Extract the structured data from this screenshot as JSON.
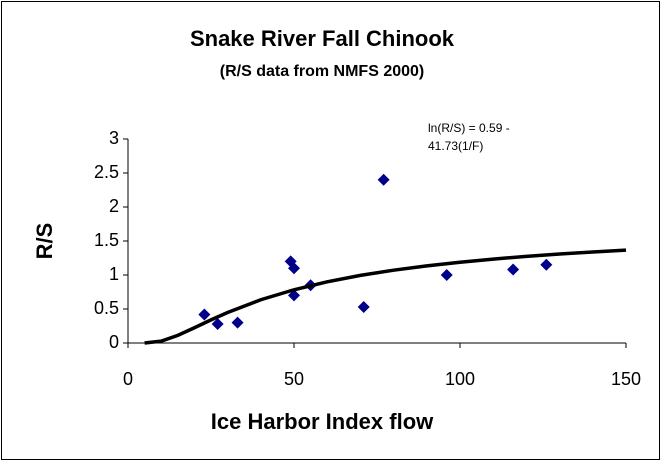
{
  "chart_data": {
    "type": "scatter",
    "title": "Snake River Fall Chinook",
    "subtitle": "(R/S data from NMFS 2000)",
    "x_label": "Ice Harbor Index flow",
    "y_label": "R/S",
    "annotation": [
      "ln(R/S) = 0.59 -",
      "41.73(1/F)"
    ],
    "xlim": [
      0,
      150
    ],
    "xticks": [
      0,
      50,
      100,
      150
    ],
    "ylim": [
      0,
      3
    ],
    "yticks": [
      0,
      0.5,
      1,
      1.5,
      2,
      2.5,
      3
    ],
    "grid": false,
    "series": [
      {
        "style": "marker",
        "color": "#00008b",
        "x": [
          23,
          27,
          33,
          49,
          50,
          50,
          55,
          71,
          77,
          96,
          116,
          126
        ],
        "values": [
          0.42,
          0.28,
          0.3,
          1.2,
          1.1,
          0.7,
          0.85,
          0.53,
          2.4,
          1.0,
          1.08,
          1.15
        ]
      },
      {
        "style": "line",
        "color": "#000000",
        "x": [
          5,
          10,
          15,
          20,
          25,
          30,
          40,
          50,
          60,
          70,
          80,
          90,
          100,
          110,
          120,
          130,
          140,
          150
        ],
        "values": [
          0.0004,
          0.028,
          0.112,
          0.224,
          0.34,
          0.449,
          0.636,
          0.783,
          0.9,
          0.994,
          1.071,
          1.134,
          1.188,
          1.234,
          1.274,
          1.309,
          1.339,
          1.366
        ]
      }
    ]
  }
}
